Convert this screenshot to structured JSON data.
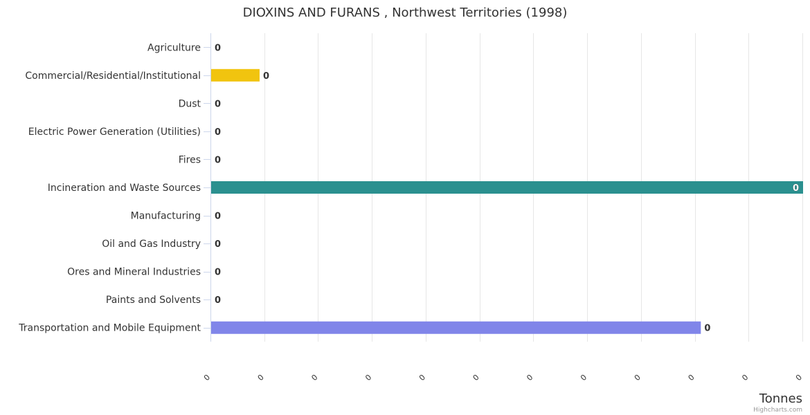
{
  "chart_data": {
    "type": "bar",
    "orientation": "horizontal",
    "title": "DIOXINS AND FURANS , Northwest Territories (1998)",
    "xlabel": "Tonnes",
    "categories": [
      "Agriculture",
      "Commercial/Residential/Institutional",
      "Dust",
      "Electric Power Generation (Utilities)",
      "Fires",
      "Incineration and Waste Sources",
      "Manufacturing",
      "Oil and Gas Industry",
      "Ores and Mineral Industries",
      "Paints and Solvents",
      "Transportation and Mobile Equipment"
    ],
    "values": [
      0,
      9e-05,
      0,
      0,
      0,
      0.0011,
      0,
      0,
      0,
      0,
      0.00091
    ],
    "data_labels": [
      "0",
      "0",
      "0",
      "0",
      "0",
      "0",
      "0",
      "0",
      "0",
      "0",
      "0"
    ],
    "bar_colors": [
      "#2f7ed8",
      "#f1c40f",
      "#2f7ed8",
      "#2f7ed8",
      "#2f7ed8",
      "#2b908f",
      "#2f7ed8",
      "#2f7ed8",
      "#2f7ed8",
      "#2f7ed8",
      "#8085e9"
    ],
    "xlim": [
      0,
      0.0011
    ],
    "tick_values": [
      0,
      0.0001,
      0.0002,
      0.0003,
      0.0004,
      0.0005,
      0.0006,
      0.0007,
      0.0008,
      0.0009,
      0.001,
      0.0011
    ],
    "tick_labels": [
      "0",
      "0",
      "0",
      "0",
      "0",
      "0",
      "0",
      "0",
      "0",
      "0",
      "0",
      "0"
    ],
    "grid": true,
    "legend": "none"
  },
  "credits": "Highcharts.com"
}
